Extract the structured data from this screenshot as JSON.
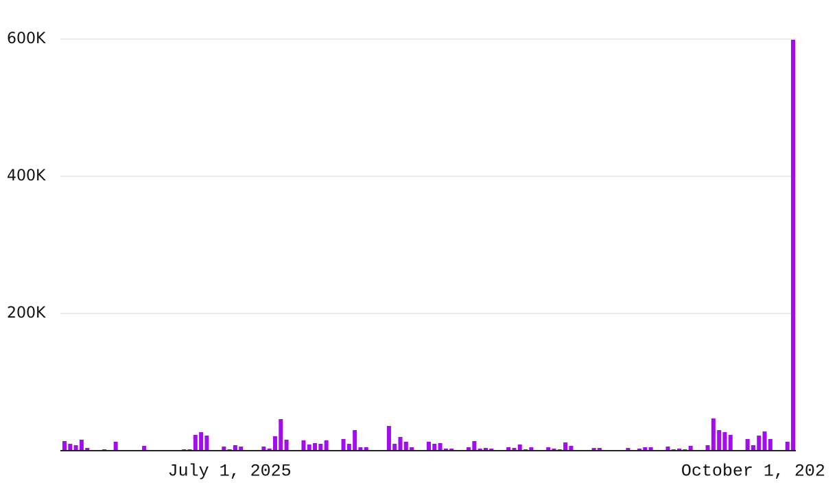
{
  "chart_data": {
    "type": "bar",
    "color": "#a10cf0",
    "grid": true,
    "x": [
      "2025-06-02",
      "2025-06-03",
      "2025-06-04",
      "2025-06-05",
      "2025-06-06",
      "2025-06-09",
      "2025-06-11",
      "2025-06-16",
      "2025-06-23",
      "2025-06-24",
      "2025-06-25",
      "2025-06-26",
      "2025-06-27",
      "2025-06-30",
      "2025-07-01",
      "2025-07-02",
      "2025-07-03",
      "2025-07-07",
      "2025-07-08",
      "2025-07-09",
      "2025-07-10",
      "2025-07-11",
      "2025-07-14",
      "2025-07-15",
      "2025-07-16",
      "2025-07-17",
      "2025-07-18",
      "2025-07-21",
      "2025-07-22",
      "2025-07-23",
      "2025-07-24",
      "2025-07-25",
      "2025-07-29",
      "2025-07-30",
      "2025-07-31",
      "2025-08-01",
      "2025-08-02",
      "2025-08-05",
      "2025-08-06",
      "2025-08-07",
      "2025-08-08",
      "2025-08-09",
      "2025-08-12",
      "2025-08-13",
      "2025-08-14",
      "2025-08-15",
      "2025-08-16",
      "2025-08-19",
      "2025-08-20",
      "2025-08-21",
      "2025-08-22",
      "2025-08-23",
      "2025-08-26",
      "2025-08-27",
      "2025-08-28",
      "2025-08-29",
      "2025-08-30",
      "2025-09-03",
      "2025-09-04",
      "2025-09-09",
      "2025-09-11",
      "2025-09-12",
      "2025-09-13",
      "2025-09-16",
      "2025-09-17",
      "2025-09-18",
      "2025-09-19",
      "2025-09-20",
      "2025-09-23",
      "2025-09-24",
      "2025-09-25",
      "2025-09-26",
      "2025-09-27",
      "2025-09-30",
      "2025-10-01",
      "2025-10-02",
      "2025-10-03",
      "2025-10-04",
      "2025-10-07",
      "2025-10-08"
    ],
    "values": [
      14000,
      10000,
      8000,
      16000,
      4000,
      2000,
      13000,
      7000,
      2000,
      2000,
      23000,
      27000,
      22000,
      6000,
      2000,
      8000,
      6000,
      6000,
      3000,
      21000,
      46000,
      16000,
      15000,
      9000,
      11000,
      10000,
      15000,
      17000,
      10000,
      30000,
      5000,
      5000,
      36000,
      10000,
      20000,
      13000,
      5000,
      13000,
      10000,
      11000,
      3000,
      3000,
      5000,
      14000,
      3000,
      4000,
      3000,
      5000,
      4000,
      9000,
      2000,
      5000,
      5000,
      3000,
      2000,
      12000,
      7000,
      4000,
      4000,
      4000,
      3000,
      5000,
      5000,
      6000,
      2000,
      3000,
      2000,
      7000,
      8000,
      47000,
      30000,
      27000,
      23000,
      17000,
      8000,
      22000,
      28000,
      17000,
      13000,
      599000
    ],
    "xlim": [
      "2025-06-02",
      "2025-10-08"
    ],
    "xticks": [
      {
        "value": "2025-07-01",
        "label": "July 1, 2025"
      },
      {
        "value": "2025-10-01",
        "label": "October 1, 202"
      }
    ],
    "ylim": [
      0,
      600000
    ],
    "yticks": [
      {
        "value": 200000,
        "label": "200K"
      },
      {
        "value": 400000,
        "label": "400K"
      },
      {
        "value": 600000,
        "label": "600K"
      }
    ]
  }
}
